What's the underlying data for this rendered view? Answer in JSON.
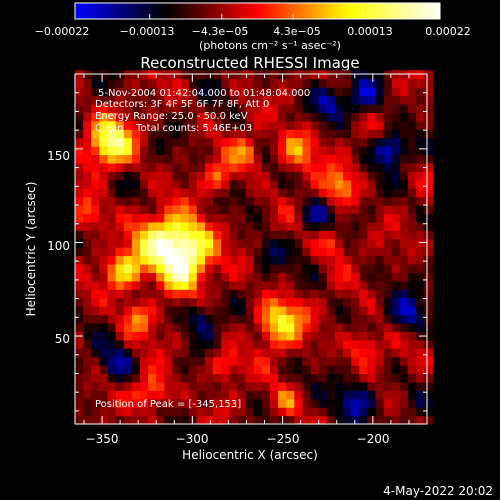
{
  "chart_data": {
    "type": "heatmap",
    "title": "Reconstructed RHESSI Image",
    "xlabel": "Heliocentric X (arcsec)",
    "ylabel": "Heliocentric Y (arcsec)",
    "xlim": [
      -365,
      -170
    ],
    "ylim": [
      3,
      190
    ],
    "x_ticks": [
      -350,
      -300,
      -250,
      -200
    ],
    "y_ticks": [
      50,
      100,
      150
    ],
    "x_tick_labels": [
      "−350",
      "−300",
      "−250",
      "−200"
    ],
    "y_tick_labels": [
      "50",
      "100",
      "150"
    ],
    "colorbar": {
      "min": -0.00022,
      "max": 0.00022,
      "tick_labels": [
        "−0.00022",
        "−0.00013",
        "−4.3e−05",
        "4.3e−05",
        "0.00013",
        "0.00022"
      ],
      "units_label": "(photons cm⁻² s⁻¹ asec⁻²)",
      "colors": [
        "#0000ff",
        "#000000",
        "#ff0000",
        "#ffff00",
        "#ffffff"
      ]
    },
    "annotations": [
      "5-Nov-2004 01:42:04.000 to 01:48:04.000",
      "Detectors: 3F 4F 5F 6F 7F 8F, Att 0",
      "Energy Range: 25.0 - 50.0 keV",
      "Clean    Total counts: 5.46E+03",
      "Position of Peak = [-345,153]"
    ],
    "peak": [
      -345,
      153
    ],
    "sources": [
      {
        "x": -316,
        "y": 99,
        "sigma": 11,
        "amp": 0.00021
      },
      {
        "x": -300,
        "y": 98,
        "sigma": 10,
        "amp": 0.00019
      },
      {
        "x": -345,
        "y": 153,
        "sigma": 9,
        "amp": 0.00022
      },
      {
        "x": -338,
        "y": 85,
        "sigma": 7,
        "amp": 0.00016
      },
      {
        "x": -307,
        "y": 83,
        "sigma": 8,
        "amp": 0.00014
      },
      {
        "x": -252,
        "y": 58,
        "sigma": 9,
        "amp": 0.00018
      },
      {
        "x": -270,
        "y": 148,
        "sigma": 6,
        "amp": 0.00011
      },
      {
        "x": -242,
        "y": 150,
        "sigma": 8,
        "amp": 0.00013
      },
      {
        "x": -285,
        "y": 135,
        "sigma": 6,
        "amp": 0.0001
      },
      {
        "x": -218,
        "y": 130,
        "sigma": 7,
        "amp": 0.00012
      },
      {
        "x": -358,
        "y": 115,
        "sigma": 7,
        "amp": 0.00011
      },
      {
        "x": -330,
        "y": 60,
        "sigma": 7,
        "amp": 0.00012
      },
      {
        "x": -282,
        "y": 35,
        "sigma": 6,
        "amp": 0.00011
      },
      {
        "x": -322,
        "y": 20,
        "sigma": 7,
        "amp": 0.00013
      },
      {
        "x": -248,
        "y": 15,
        "sigma": 6,
        "amp": 0.0001
      },
      {
        "x": -205,
        "y": 45,
        "sigma": 7,
        "amp": 0.00011
      },
      {
        "x": -222,
        "y": 100,
        "sigma": 6,
        "amp": 9e-05
      },
      {
        "x": -190,
        "y": 150,
        "sigma": 6,
        "amp": -0.00016
      },
      {
        "x": -205,
        "y": 178,
        "sigma": 7,
        "amp": -0.00012
      },
      {
        "x": -225,
        "y": 175,
        "sigma": 6,
        "amp": -0.0001
      },
      {
        "x": -180,
        "y": 62,
        "sigma": 7,
        "amp": -0.00012
      },
      {
        "x": -295,
        "y": 60,
        "sigma": 7,
        "amp": -0.00011
      },
      {
        "x": -342,
        "y": 35,
        "sigma": 7,
        "amp": -0.0001
      },
      {
        "x": -210,
        "y": 15,
        "sigma": 8,
        "amp": -0.00014
      },
      {
        "x": -232,
        "y": 115,
        "sigma": 6,
        "amp": -9e-05
      },
      {
        "x": -258,
        "y": 95,
        "sigma": 6,
        "amp": -8e-05
      }
    ]
  },
  "footer": {
    "timestamp": "4-May-2022 20:02"
  }
}
